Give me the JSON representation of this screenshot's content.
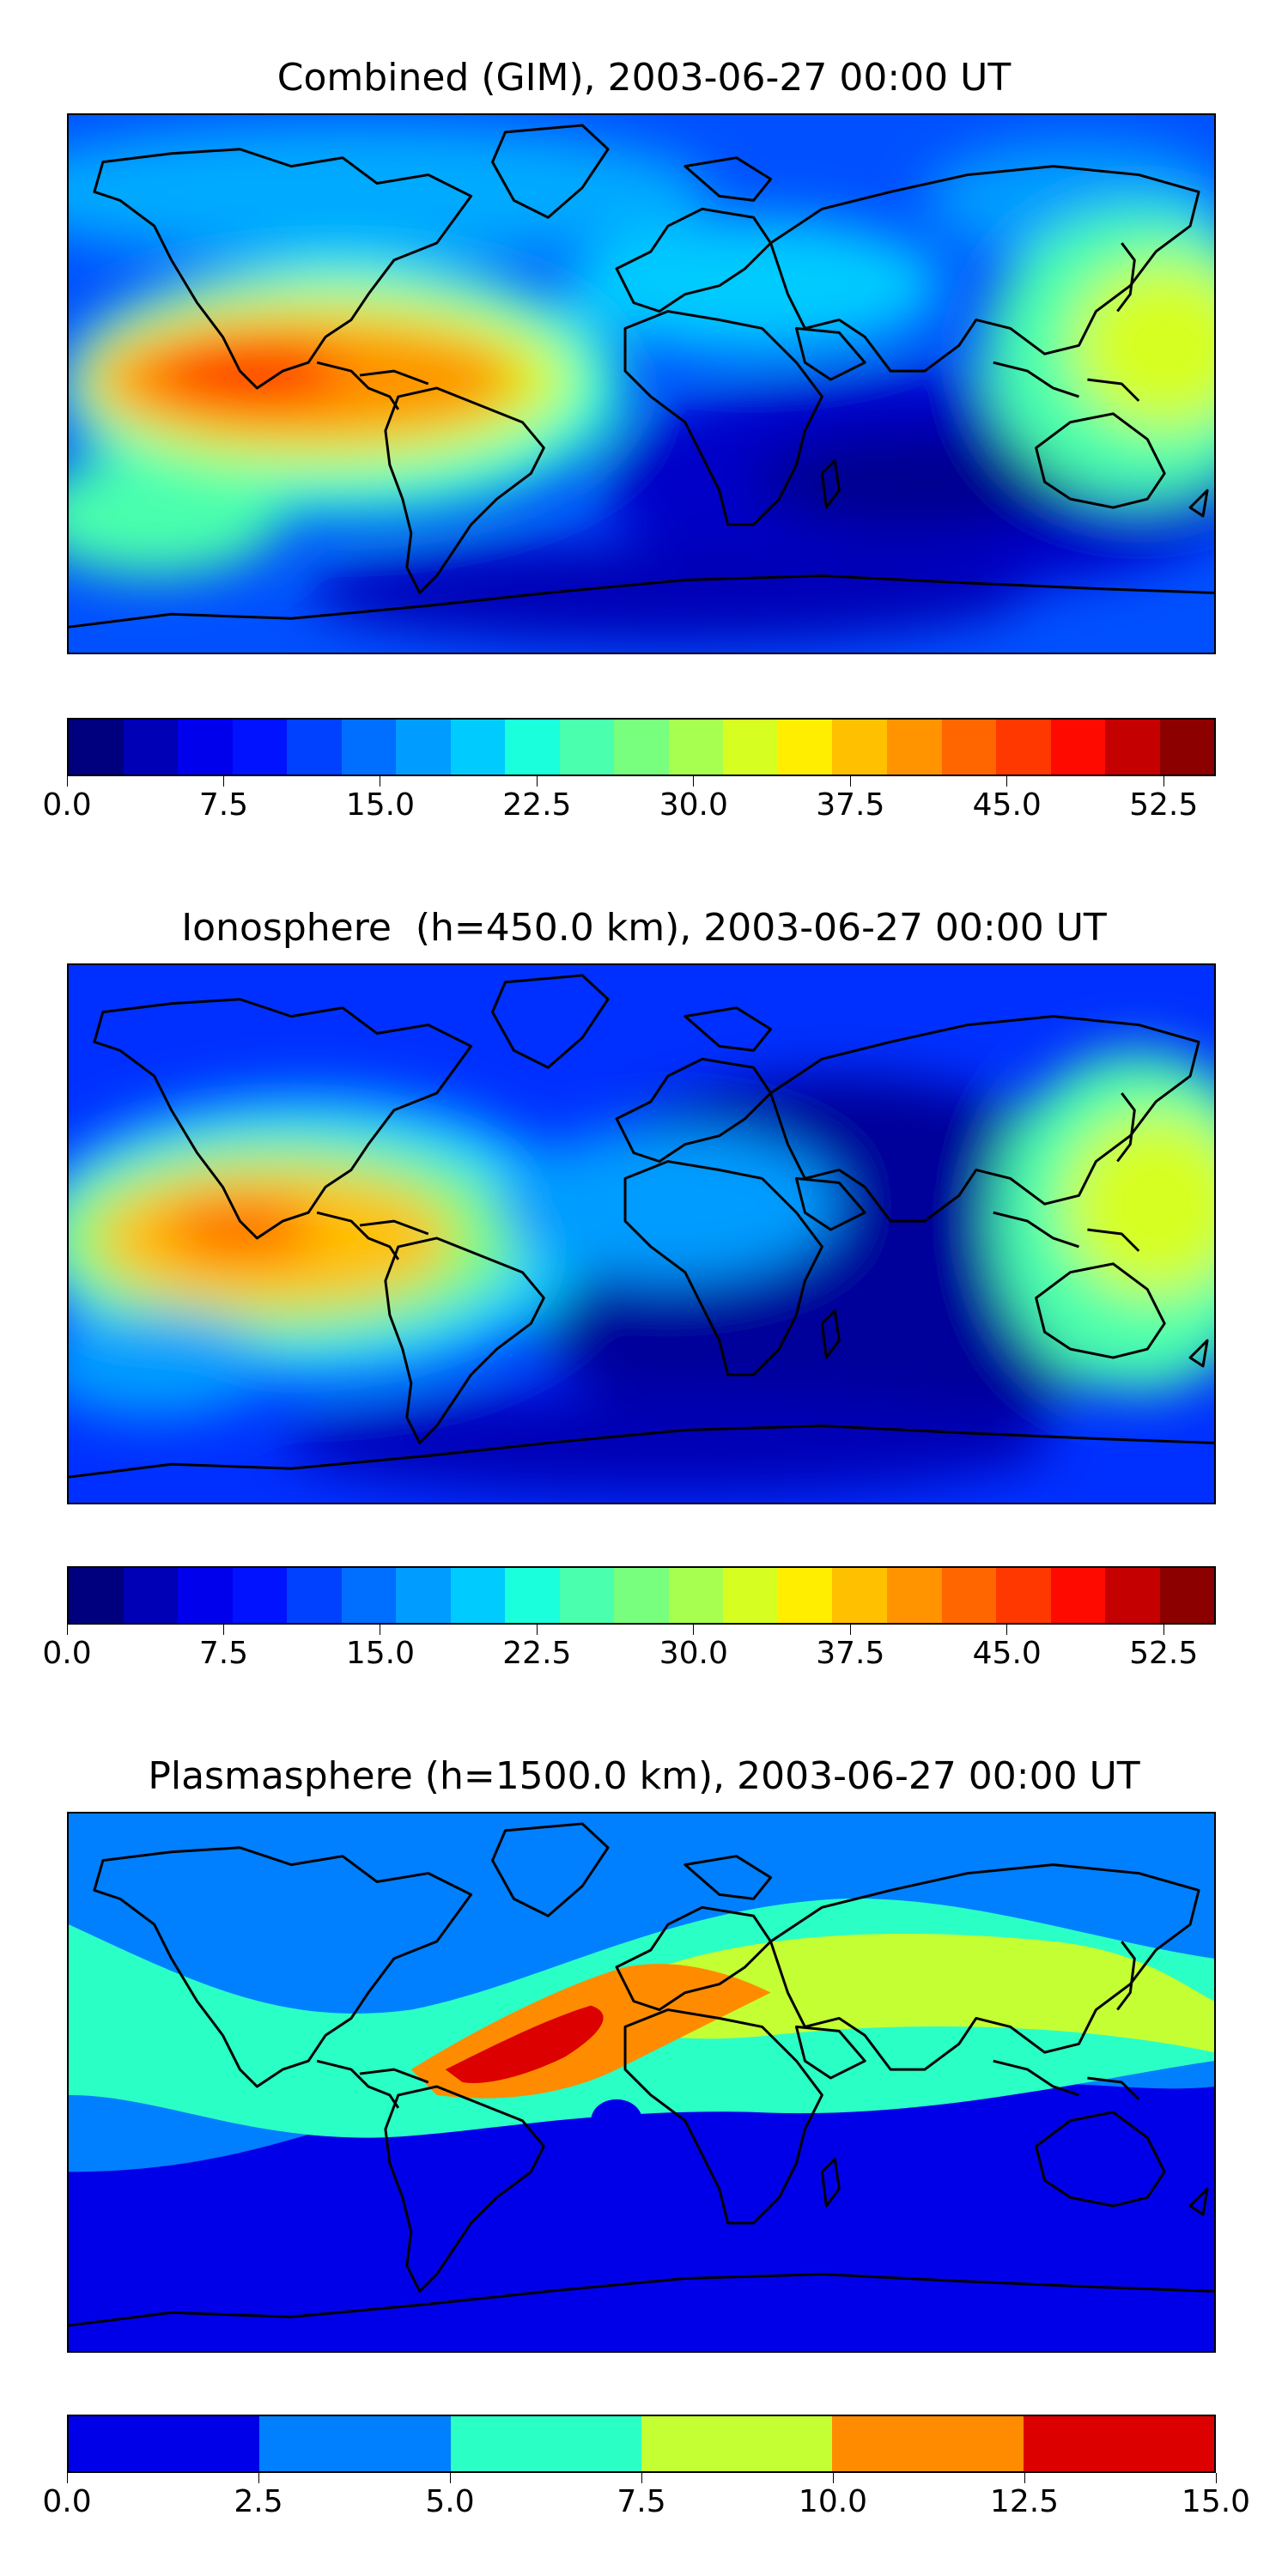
{
  "panels": [
    {
      "title": "Combined (GIM), 2003-06-27 00:00 UT",
      "colorbar": {
        "colors": [
          "#00007f",
          "#0000b6",
          "#0000ed",
          "#0012ff",
          "#0040ff",
          "#006eff",
          "#009cff",
          "#00cbff",
          "#1affdc",
          "#4affad",
          "#78ff7e",
          "#a7ff50",
          "#d6ff21",
          "#ffee00",
          "#ffc000",
          "#ff9300",
          "#ff6600",
          "#ff3800",
          "#ff0a00",
          "#c40000",
          "#8d0000"
        ],
        "ticks": [
          "0.0",
          "7.5",
          "15.0",
          "22.5",
          "30.0",
          "37.5",
          "45.0",
          "52.5"
        ],
        "tick_values": [
          0,
          7.5,
          15,
          22.5,
          30,
          37.5,
          45,
          52.5
        ],
        "range": [
          0,
          55
        ]
      }
    },
    {
      "title": "Ionosphere  (h=450.0 km), 2003-06-27 00:00 UT",
      "colorbar": {
        "colors": [
          "#00007f",
          "#0000b6",
          "#0000ed",
          "#0012ff",
          "#0040ff",
          "#006eff",
          "#009cff",
          "#00cbff",
          "#1affdc",
          "#4affad",
          "#78ff7e",
          "#a7ff50",
          "#d6ff21",
          "#ffee00",
          "#ffc000",
          "#ff9300",
          "#ff6600",
          "#ff3800",
          "#ff0a00",
          "#c40000",
          "#8d0000"
        ],
        "ticks": [
          "0.0",
          "7.5",
          "15.0",
          "22.5",
          "30.0",
          "37.5",
          "45.0",
          "52.5"
        ],
        "tick_values": [
          0,
          7.5,
          15,
          22.5,
          30,
          37.5,
          45,
          52.5
        ],
        "range": [
          0,
          55
        ]
      }
    },
    {
      "title": "Plasmasphere (h=1500.0 km), 2003-06-27 00:00 UT",
      "colorbar": {
        "colors": [
          "#0000e8",
          "#0080ff",
          "#2affc6",
          "#c4ff34",
          "#ff8c00",
          "#dd0000"
        ],
        "ticks": [
          "0.0",
          "2.5",
          "5.0",
          "7.5",
          "10.0",
          "12.5",
          "15.0"
        ],
        "tick_values": [
          0,
          2.5,
          5,
          7.5,
          10,
          12.5,
          15
        ],
        "range": [
          0,
          15
        ]
      }
    }
  ]
}
